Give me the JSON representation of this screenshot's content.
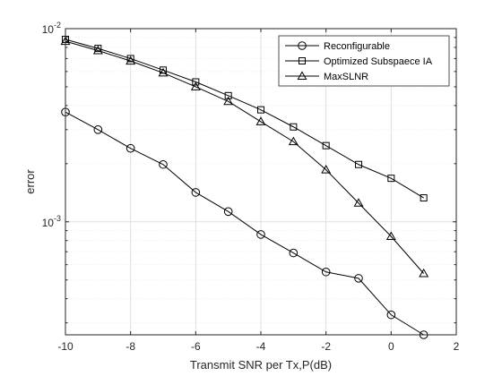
{
  "chart_data": {
    "type": "line",
    "title": "",
    "xlabel": "Transmit SNR per Tx,P(dB)",
    "ylabel": "error",
    "xlim": [
      -10,
      2
    ],
    "ylim": [
      0.00026,
      0.01
    ],
    "yscale": "log",
    "xticks": [
      -10,
      -8,
      -6,
      -4,
      -2,
      0,
      2
    ],
    "xtick_labels": [
      "-10",
      "-8",
      "-6",
      "-4",
      "-2",
      "0",
      "2"
    ],
    "ytick_labels": [
      {
        "value": 0.001,
        "base": "10",
        "exp": "-3"
      },
      {
        "value": 0.01,
        "base": "10",
        "exp": "-2"
      }
    ],
    "grid": true,
    "legend_position": "top-right",
    "x": [
      -10,
      -9,
      -8,
      -7,
      -6,
      -5,
      -4,
      -3,
      -2,
      -1,
      0,
      1
    ],
    "series": [
      {
        "name": "Reconfigurable",
        "marker": "circle",
        "color": "#000000",
        "values": [
          0.0037,
          0.003,
          0.0024,
          0.00198,
          0.00142,
          0.00113,
          0.00086,
          0.00069,
          0.00055,
          0.00051,
          0.00033,
          0.00026
        ]
      },
      {
        "name": "Optimized Subspaece IA",
        "marker": "square",
        "color": "#000000",
        "values": [
          0.0088,
          0.0079,
          0.007,
          0.0061,
          0.0053,
          0.0045,
          0.0038,
          0.0031,
          0.00248,
          0.00198,
          0.00168,
          0.00133
        ]
      },
      {
        "name": "MaxSLNR",
        "marker": "triangle",
        "color": "#000000",
        "values": [
          0.0086,
          0.0077,
          0.0068,
          0.0059,
          0.005,
          0.0042,
          0.0033,
          0.0026,
          0.00186,
          0.00125,
          0.00084,
          0.00054
        ]
      }
    ]
  }
}
